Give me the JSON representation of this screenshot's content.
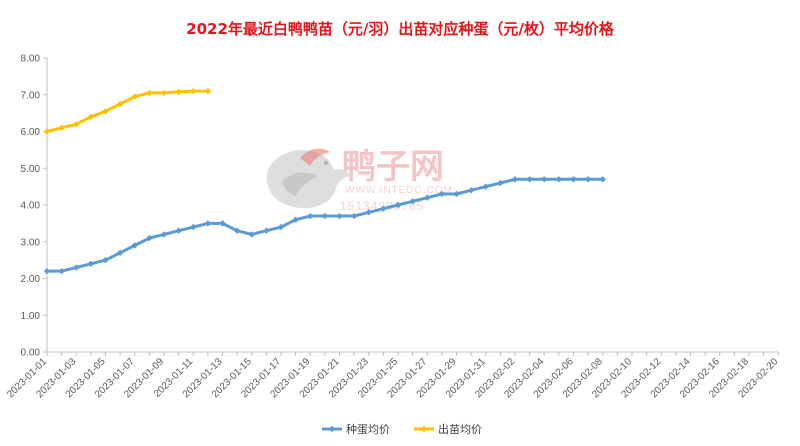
{
  "watermark": {
    "brand": "鸭子网",
    "url": "WWW.INTEDC.COM",
    "phone": "15134989765"
  },
  "chart_data": {
    "type": "line",
    "title": "2022年最近白鸭鸭苗（元/羽）出苗对应种蛋（元/枚）平均价格",
    "xlabel": "",
    "ylabel": "",
    "ylim": [
      0,
      8
    ],
    "yticks": [
      "0.00",
      "1.00",
      "2.00",
      "3.00",
      "4.00",
      "5.00",
      "6.00",
      "7.00",
      "8.00"
    ],
    "x_start": "2023-01-01",
    "x_tick_labels": [
      "2023-01-01",
      "2023-01-03",
      "2023-01-05",
      "2023-01-07",
      "2023-01-09",
      "2023-01-11",
      "2023-01-13",
      "2023-01-15",
      "2023-01-17",
      "2023-01-19",
      "2023-01-21",
      "2023-01-23",
      "2023-01-25",
      "2023-01-27",
      "2023-01-29",
      "2023-01-31",
      "2023-02-02",
      "2023-02-04",
      "2023-02-06",
      "2023-02-08",
      "2023-02-10",
      "2023-02-12",
      "2023-02-14",
      "2023-02-16",
      "2023-02-18",
      "2023-02-20"
    ],
    "grid": false,
    "legend_position": "bottom",
    "series": [
      {
        "name": "种蛋均价",
        "color": "#5b9bd5",
        "x": [
          "2023-01-01",
          "2023-01-02",
          "2023-01-03",
          "2023-01-04",
          "2023-01-05",
          "2023-01-06",
          "2023-01-07",
          "2023-01-08",
          "2023-01-09",
          "2023-01-10",
          "2023-01-11",
          "2023-01-12",
          "2023-01-13",
          "2023-01-14",
          "2023-01-15",
          "2023-01-16",
          "2023-01-17",
          "2023-01-18",
          "2023-01-19",
          "2023-01-20",
          "2023-01-21",
          "2023-01-22",
          "2023-01-23",
          "2023-01-24",
          "2023-01-25",
          "2023-01-26",
          "2023-01-27",
          "2023-01-28",
          "2023-01-29",
          "2023-01-30",
          "2023-01-31",
          "2023-02-01",
          "2023-02-02",
          "2023-02-03",
          "2023-02-04",
          "2023-02-05",
          "2023-02-06",
          "2023-02-07",
          "2023-02-08"
        ],
        "values": [
          2.2,
          2.2,
          2.3,
          2.4,
          2.5,
          2.7,
          2.9,
          3.1,
          3.2,
          3.3,
          3.4,
          3.5,
          3.5,
          3.3,
          3.2,
          3.3,
          3.4,
          3.6,
          3.7,
          3.7,
          3.7,
          3.7,
          3.8,
          3.9,
          4.0,
          4.1,
          4.2,
          4.3,
          4.3,
          4.4,
          4.5,
          4.6,
          4.7,
          4.7,
          4.7,
          4.7,
          4.7,
          4.7,
          4.7
        ]
      },
      {
        "name": "出苗均价",
        "color": "#ffc000",
        "x": [
          "2023-01-01",
          "2023-01-02",
          "2023-01-03",
          "2023-01-04",
          "2023-01-05",
          "2023-01-06",
          "2023-01-07",
          "2023-01-08",
          "2023-01-09",
          "2023-01-10",
          "2023-01-11",
          "2023-01-12"
        ],
        "values": [
          6.0,
          6.1,
          6.2,
          6.4,
          6.55,
          6.75,
          6.95,
          7.05,
          7.05,
          7.08,
          7.1,
          7.1
        ]
      }
    ]
  }
}
